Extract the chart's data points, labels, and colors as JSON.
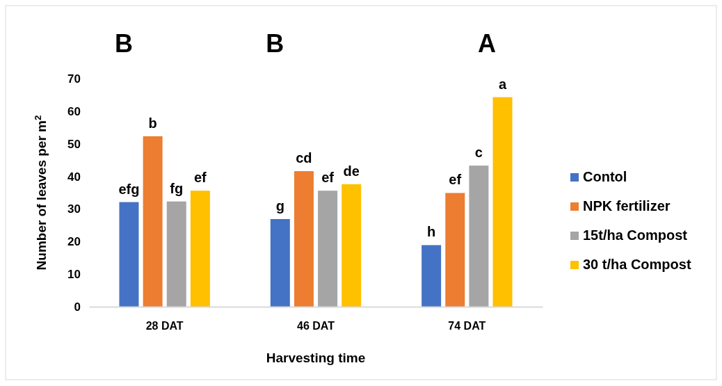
{
  "chart_data": {
    "type": "bar",
    "xlabel": "Harvesting time",
    "ylabel": "Number of leaves per m$^{2}$",
    "categories": [
      "28 DAT",
      "46 DAT",
      "74 DAT"
    ],
    "series": [
      {
        "name": "Contol",
        "color": "#4472c4",
        "values": [
          32.1,
          26.9,
          18.9
        ],
        "value_labels": [
          "efg",
          "g",
          "h"
        ]
      },
      {
        "name": "NPK fertilizer",
        "color": "#ed7d31",
        "values": [
          52.3,
          41.6,
          34.9
        ],
        "value_labels": [
          "b",
          "cd",
          "ef"
        ]
      },
      {
        "name": "15t/ha Compost",
        "color": "#a5a5a5",
        "values": [
          32.3,
          35.6,
          43.3
        ],
        "value_labels": [
          "fg",
          "ef",
          "c"
        ]
      },
      {
        "name": "30 t/ha Compost",
        "color": "#ffc000",
        "values": [
          35.6,
          37.6,
          64.3
        ],
        "value_labels": [
          "ef",
          "de",
          "a"
        ]
      }
    ],
    "annotations": [
      "B",
      "B",
      "A"
    ],
    "ylim": [
      0,
      70
    ],
    "yticks": [
      0,
      10,
      20,
      30,
      40,
      50,
      60,
      70
    ],
    "grid": false,
    "legend": "right"
  }
}
